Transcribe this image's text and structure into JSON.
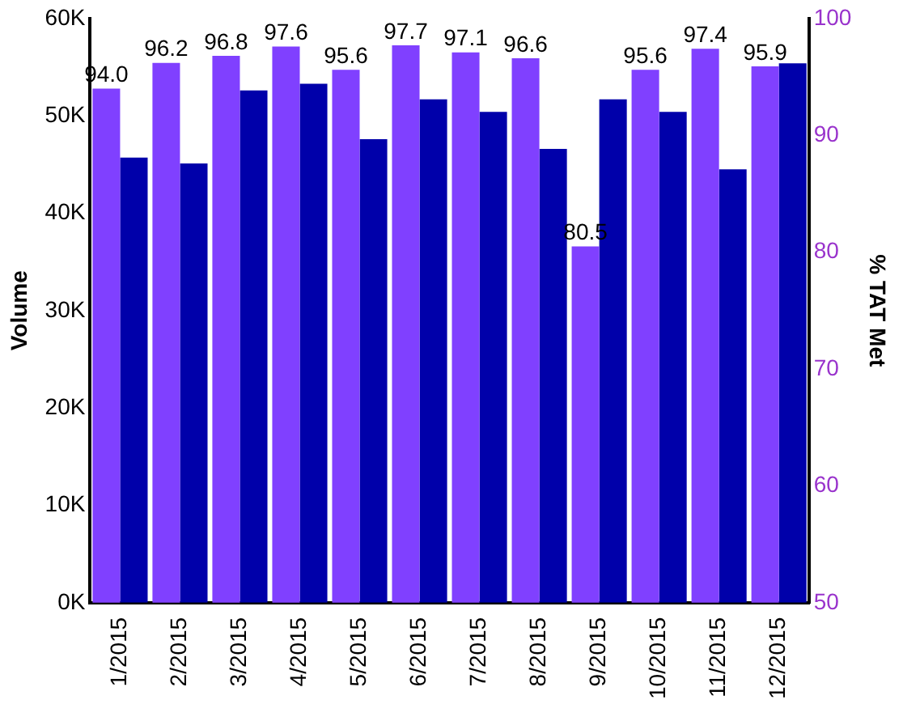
{
  "chart_data": {
    "type": "bar",
    "xlabel": null,
    "ylabel": "Volume",
    "y2label": "% TAT Met",
    "categories": [
      "1/2015",
      "2/2015",
      "3/2015",
      "4/2015",
      "5/2015",
      "6/2015",
      "7/2015",
      "8/2015",
      "9/2015",
      "10/2015",
      "11/2015",
      "12/2015"
    ],
    "series": [
      {
        "color": "#8040ff",
        "axis": "y2",
        "values": [
          94.0,
          96.2,
          96.8,
          97.6,
          95.6,
          97.7,
          97.1,
          96.6,
          80.5,
          95.6,
          97.4,
          95.9
        ],
        "value_labels": [
          "94.0",
          "96.2",
          "96.8",
          "97.6",
          "95.6",
          "97.7",
          "97.1",
          "96.6",
          "80.5",
          "95.6",
          "97.4",
          "95.9"
        ]
      },
      {
        "color": "#0000aa",
        "values": [
          45700,
          45100,
          52600,
          53300,
          47600,
          51700,
          50400,
          46600,
          51700,
          50400,
          44500,
          55400
        ]
      }
    ],
    "ylim": [
      0,
      60000
    ],
    "yticks": [
      {
        "value": 0,
        "label": "0K"
      },
      {
        "value": 10000,
        "label": "10K"
      },
      {
        "value": 20000,
        "label": "20K"
      },
      {
        "value": 30000,
        "label": "30K"
      },
      {
        "value": 40000,
        "label": "40K"
      },
      {
        "value": 50000,
        "label": "50K"
      },
      {
        "value": 60000,
        "label": "60K"
      }
    ],
    "y2lim": [
      50,
      100
    ],
    "y2ticks": [
      50,
      60,
      70,
      80,
      90,
      100
    ],
    "grid": false,
    "legend": false
  }
}
